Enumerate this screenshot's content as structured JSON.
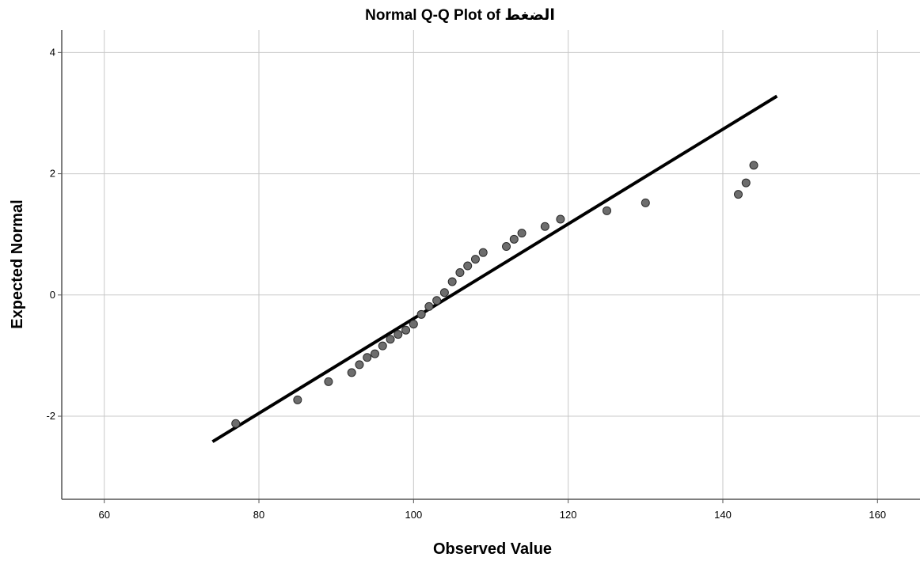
{
  "chart_data": {
    "type": "scatter",
    "title": "Normal Q-Q Plot of الضغط",
    "xlabel": "Observed Value",
    "ylabel": "Expected Normal",
    "xlim": [
      54.5,
      165.5
    ],
    "ylim": [
      -3.37,
      4.37
    ],
    "xticks": [
      60,
      80,
      100,
      120,
      140,
      160
    ],
    "yticks": [
      -2,
      0,
      2,
      4
    ],
    "grid": true,
    "colors": {
      "point_fill": "#6d6d6d",
      "point_stroke": "#2a2a2a",
      "line": "#000000",
      "grid": "#c8c8c8",
      "axis": "#555555"
    },
    "points": [
      {
        "x": 77,
        "y": -2.12
      },
      {
        "x": 85,
        "y": -1.73
      },
      {
        "x": 89,
        "y": -1.43
      },
      {
        "x": 92,
        "y": -1.28
      },
      {
        "x": 93,
        "y": -1.15
      },
      {
        "x": 94,
        "y": -1.03
      },
      {
        "x": 95,
        "y": -0.97
      },
      {
        "x": 96,
        "y": -0.84
      },
      {
        "x": 97,
        "y": -0.73
      },
      {
        "x": 98,
        "y": -0.65
      },
      {
        "x": 99,
        "y": -0.58
      },
      {
        "x": 100,
        "y": -0.48
      },
      {
        "x": 101,
        "y": -0.32
      },
      {
        "x": 102,
        "y": -0.19
      },
      {
        "x": 103,
        "y": -0.09
      },
      {
        "x": 104,
        "y": 0.04
      },
      {
        "x": 105,
        "y": 0.22
      },
      {
        "x": 106,
        "y": 0.37
      },
      {
        "x": 107,
        "y": 0.48
      },
      {
        "x": 108,
        "y": 0.59
      },
      {
        "x": 109,
        "y": 0.7
      },
      {
        "x": 112,
        "y": 0.8
      },
      {
        "x": 113,
        "y": 0.92
      },
      {
        "x": 114,
        "y": 1.02
      },
      {
        "x": 117,
        "y": 1.13
      },
      {
        "x": 119,
        "y": 1.25
      },
      {
        "x": 125,
        "y": 1.39
      },
      {
        "x": 130,
        "y": 1.52
      },
      {
        "x": 142,
        "y": 1.66
      },
      {
        "x": 143,
        "y": 1.85
      },
      {
        "x": 144,
        "y": 2.14
      }
    ],
    "reference_line": {
      "x": [
        74,
        147
      ],
      "y": [
        -2.42,
        3.28
      ]
    }
  }
}
